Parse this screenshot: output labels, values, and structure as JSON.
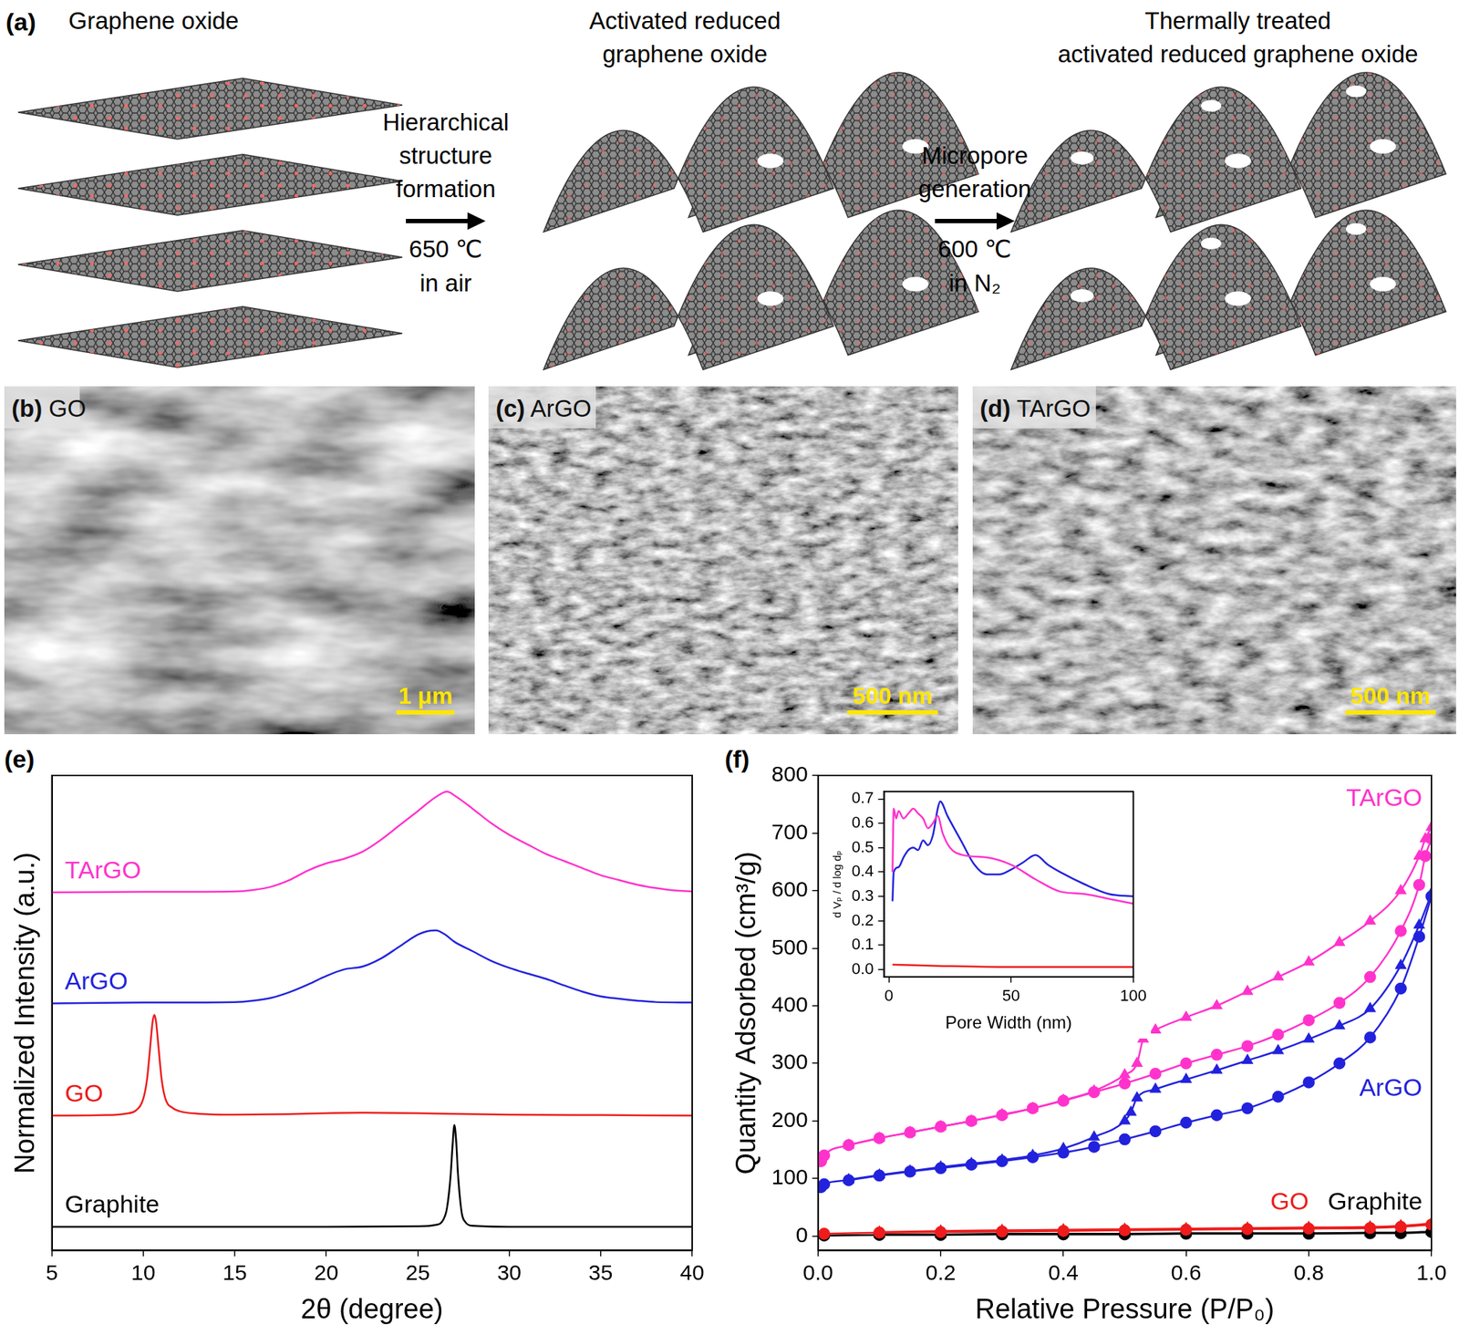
{
  "figure": {
    "panel_a": {
      "label": "(a)",
      "stages": [
        [
          "Graphene oxide"
        ],
        [
          "Activated reduced",
          "graphene oxide"
        ],
        [
          "Thermally treated",
          "activated reduced graphene oxide"
        ]
      ],
      "steps": [
        {
          "text": [
            "Hierarchical",
            "structure",
            "formation"
          ],
          "conditions": [
            "650 ℃",
            "in air"
          ]
        },
        {
          "text": [
            "Micropore",
            "generation"
          ],
          "conditions": [
            "600 ℃",
            "in N₂"
          ]
        }
      ]
    },
    "sem_panels": [
      {
        "label": "(b)",
        "name": "GO",
        "scale_bar": "1 μm"
      },
      {
        "label": "(c)",
        "name": "ArGO",
        "scale_bar": "500 nm"
      },
      {
        "label": "(d)",
        "name": "TArGO",
        "scale_bar": "500 nm"
      }
    ]
  },
  "chart_data": [
    {
      "label": "(e)",
      "type": "line",
      "x_label": "2θ (degree)",
      "y_label": "Normalized Intensity (a.u.)",
      "xlim": [
        5,
        40
      ],
      "xticks": [
        5,
        10,
        15,
        20,
        25,
        30,
        35,
        40
      ],
      "ylim": [
        0,
        100
      ],
      "tick_labels": "x",
      "grid": false,
      "series": [
        {
          "name": "TArGO",
          "color": "#ff33cc",
          "marker": "none",
          "x": [
            5,
            10,
            15,
            16,
            17,
            18,
            19,
            20,
            21,
            22,
            23,
            24,
            25,
            26,
            26.6,
            27,
            28,
            29,
            30,
            31,
            32,
            33,
            34,
            35,
            36,
            37,
            38,
            39,
            40
          ],
          "values": [
            75.4,
            75.5,
            75.6,
            75.9,
            76.6,
            78,
            80,
            81.5,
            82.5,
            84,
            86.5,
            89.5,
            92.5,
            95.5,
            96.6,
            95.8,
            93,
            90,
            87.5,
            85.5,
            83.5,
            82,
            80.5,
            79,
            78,
            77,
            76.3,
            75.8,
            75.6
          ]
        },
        {
          "name": "ArGO",
          "color": "#2222dd",
          "marker": "none",
          "x": [
            5,
            10,
            15,
            16,
            17,
            18,
            19,
            20,
            21,
            22,
            23,
            24,
            25,
            25.5,
            26,
            26.5,
            27,
            28,
            29,
            30,
            31,
            32,
            33,
            34,
            35,
            36,
            37,
            38,
            40
          ],
          "values": [
            52,
            52.2,
            52.3,
            52.6,
            53.2,
            54.4,
            56,
            57.8,
            59.2,
            59.8,
            61.5,
            64,
            66.5,
            67.2,
            67.4,
            66.5,
            65,
            63,
            61,
            59.5,
            58.3,
            57.2,
            55.8,
            54.5,
            53.5,
            53,
            52.6,
            52.3,
            52.2
          ]
        },
        {
          "name": "GO",
          "color": "#ee1c1c",
          "marker": "none",
          "x": [
            5,
            8,
            9,
            9.6,
            10,
            10.2,
            10.4,
            10.5,
            10.6,
            10.7,
            10.8,
            11,
            11.2,
            11.6,
            12,
            13,
            15,
            18,
            20,
            22,
            25,
            28,
            30,
            35,
            40
          ],
          "values": [
            28.4,
            28.5,
            28.8,
            29.5,
            32,
            36,
            44,
            48,
            49.6,
            48,
            44,
            36,
            32,
            30,
            29.3,
            28.8,
            28.6,
            28.7,
            28.9,
            29,
            28.9,
            28.7,
            28.6,
            28.5,
            28.4
          ]
        },
        {
          "name": "Graphite",
          "color": "#000000",
          "marker": "none",
          "x": [
            5,
            10,
            15,
            20,
            25,
            26,
            26.4,
            26.6,
            26.8,
            26.9,
            27,
            27.1,
            27.2,
            27.4,
            27.6,
            28,
            30,
            35,
            40
          ],
          "values": [
            5,
            5,
            5,
            5,
            5.1,
            5.4,
            6.5,
            9,
            16,
            22,
            26.4,
            23,
            16,
            8,
            6,
            5.2,
            5,
            5,
            5
          ]
        }
      ]
    },
    {
      "label": "(f)",
      "type": "scatter",
      "x_label": "Relative Pressure (P/P₀)",
      "y_label": "Quantity Adsorbed (cm³/g)",
      "xlim": [
        0,
        1
      ],
      "xticks": [
        {
          "value": 0,
          "label": "0.0"
        },
        0.2,
        0.4,
        0.6,
        0.8,
        {
          "value": 1,
          "label": "1.0"
        }
      ],
      "ylim": [
        -25,
        800
      ],
      "yticks": [
        0,
        100,
        200,
        300,
        400,
        500,
        600,
        700,
        800
      ],
      "grid": false,
      "line_style": "solid",
      "series": [
        {
          "name": "TArGO",
          "color": "#ff33cc",
          "marker": "circle",
          "x": [
            0.005,
            0.01,
            0.05,
            0.1,
            0.15,
            0.2,
            0.25,
            0.3,
            0.35,
            0.4,
            0.45,
            0.5,
            0.55,
            0.6,
            0.65,
            0.7,
            0.75,
            0.8,
            0.85,
            0.9,
            0.95,
            0.98,
            0.99,
            1.0
          ],
          "values": [
            130,
            140,
            158,
            170,
            180,
            190,
            200,
            210,
            222,
            235,
            250,
            265,
            282,
            300,
            315,
            330,
            350,
            375,
            405,
            450,
            530,
            610,
            660,
            690
          ]
        },
        {
          "name": "TArGO",
          "color": "#ff33cc",
          "marker": "triangle",
          "x": [
            1.0,
            0.99,
            0.98,
            0.95,
            0.9,
            0.85,
            0.8,
            0.75,
            0.7,
            0.65,
            0.6,
            0.55,
            0.53,
            0.52,
            0.5,
            0.45,
            0.4,
            0.35,
            0.3,
            0.25,
            0.2,
            0.15,
            0.1,
            0.05
          ],
          "values": [
            710,
            690,
            660,
            600,
            547,
            510,
            476,
            450,
            425,
            400,
            380,
            358,
            342,
            300,
            280,
            252,
            236,
            222,
            211,
            200,
            190,
            180,
            170,
            158
          ]
        },
        {
          "name": "ArGO",
          "color": "#2222dd",
          "marker": "circle",
          "x": [
            0.005,
            0.01,
            0.05,
            0.1,
            0.15,
            0.2,
            0.25,
            0.3,
            0.35,
            0.4,
            0.45,
            0.5,
            0.55,
            0.6,
            0.65,
            0.7,
            0.75,
            0.8,
            0.85,
            0.9,
            0.95,
            0.98,
            1.0
          ],
          "values": [
            85,
            90,
            97,
            105,
            112,
            118,
            124,
            130,
            137,
            145,
            155,
            168,
            182,
            197,
            210,
            222,
            242,
            267,
            300,
            345,
            430,
            520,
            590
          ]
        },
        {
          "name": "ArGO",
          "color": "#2222dd",
          "marker": "triangle",
          "x": [
            1.0,
            0.98,
            0.95,
            0.9,
            0.85,
            0.8,
            0.75,
            0.7,
            0.65,
            0.6,
            0.55,
            0.52,
            0.51,
            0.5,
            0.45,
            0.4,
            0.35,
            0.3,
            0.25,
            0.2,
            0.15,
            0.1,
            0.05
          ],
          "values": [
            595,
            540,
            470,
            395,
            365,
            342,
            322,
            305,
            288,
            272,
            255,
            240,
            215,
            200,
            172,
            152,
            140,
            132,
            126,
            120,
            113,
            106,
            98
          ]
        },
        {
          "name": "GO",
          "color": "#ee1c1c",
          "marker": "circle",
          "x": [
            0.01,
            0.1,
            0.2,
            0.3,
            0.4,
            0.5,
            0.6,
            0.7,
            0.8,
            0.9,
            0.95,
            1.0
          ],
          "values": [
            4,
            6,
            7,
            8,
            9,
            10,
            11,
            12,
            13,
            14,
            16,
            20
          ]
        },
        {
          "name": "GO",
          "color": "#ee1c1c",
          "marker": "triangle",
          "x": [
            1.0,
            0.95,
            0.9,
            0.8,
            0.7,
            0.6,
            0.5,
            0.4,
            0.3,
            0.2,
            0.1
          ],
          "values": [
            22,
            18,
            16,
            15,
            14,
            13,
            12,
            11,
            10,
            9,
            7
          ]
        },
        {
          "name": "Graphite",
          "color": "#000000",
          "marker": "circle",
          "x": [
            0.01,
            0.1,
            0.2,
            0.3,
            0.4,
            0.5,
            0.6,
            0.7,
            0.8,
            0.9,
            0.95,
            1.0
          ],
          "values": [
            1,
            2,
            2,
            3,
            3,
            3,
            4,
            4,
            4,
            5,
            5,
            7
          ]
        },
        {
          "name": "Graphite",
          "color": "#000000",
          "marker": "triangle",
          "x": [
            1.0,
            0.95,
            0.9,
            0.8,
            0.7,
            0.6,
            0.5,
            0.4,
            0.3,
            0.2,
            0.1
          ],
          "values": [
            8,
            6,
            6,
            5,
            5,
            5,
            4,
            4,
            4,
            3,
            3
          ]
        }
      ]
    },
    {
      "type": "line",
      "x_label": "Pore Width (nm)",
      "y_label": "d Vₚ / d log dₚ",
      "xlim": [
        -2,
        100
      ],
      "xticks": [
        0,
        50,
        100
      ],
      "ylim": [
        -0.03,
        0.73
      ],
      "yticks": [
        {
          "value": 0,
          "label": "0.0"
        },
        0.1,
        0.2,
        0.3,
        0.4,
        0.5,
        0.6,
        0.7
      ],
      "grid": false,
      "series": [
        {
          "color": "#ff33cc",
          "marker": "none",
          "x": [
            1.5,
            2,
            3,
            4,
            6,
            8,
            10,
            12,
            14,
            16,
            18,
            20,
            22,
            25,
            30,
            40,
            50,
            60,
            70,
            80,
            90,
            100
          ],
          "values": [
            0.4,
            0.66,
            0.62,
            0.65,
            0.62,
            0.64,
            0.66,
            0.64,
            0.62,
            0.58,
            0.6,
            0.63,
            0.56,
            0.5,
            0.47,
            0.46,
            0.43,
            0.37,
            0.32,
            0.31,
            0.29,
            0.27
          ]
        },
        {
          "color": "#2222dd",
          "marker": "none",
          "x": [
            1.5,
            2,
            4,
            6,
            8,
            10,
            12,
            14,
            16,
            18,
            20,
            21,
            24,
            30,
            35,
            40,
            45,
            50,
            55,
            60,
            65,
            70,
            80,
            90,
            100
          ],
          "values": [
            0.28,
            0.4,
            0.42,
            0.46,
            0.49,
            0.5,
            0.49,
            0.53,
            0.51,
            0.55,
            0.66,
            0.69,
            0.63,
            0.52,
            0.43,
            0.39,
            0.39,
            0.41,
            0.44,
            0.47,
            0.43,
            0.4,
            0.35,
            0.31,
            0.3
          ]
        },
        {
          "color": "#ee1c1c",
          "marker": "none",
          "x": [
            1.5,
            20,
            50,
            100
          ],
          "values": [
            0.02,
            0.015,
            0.01,
            0.01
          ]
        }
      ]
    }
  ]
}
